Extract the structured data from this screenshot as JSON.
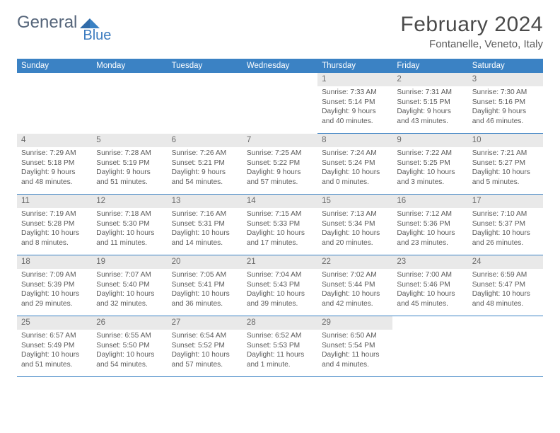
{
  "logo": {
    "text1": "General",
    "text2": "Blue"
  },
  "title": "February 2024",
  "location": "Fontanelle, Veneto, Italy",
  "colors": {
    "header_bg": "#3b82c4",
    "header_text": "#ffffff",
    "daynum_bg": "#e9e9e9",
    "border": "#3b82c4",
    "text": "#5a5a5a",
    "logo_gray": "#55657a",
    "logo_blue": "#3b7bbf"
  },
  "weekdays": [
    "Sunday",
    "Monday",
    "Tuesday",
    "Wednesday",
    "Thursday",
    "Friday",
    "Saturday"
  ],
  "weeks": [
    [
      null,
      null,
      null,
      null,
      {
        "n": "1",
        "sr": "7:33 AM",
        "ss": "5:14 PM",
        "dl": "9 hours and 40 minutes."
      },
      {
        "n": "2",
        "sr": "7:31 AM",
        "ss": "5:15 PM",
        "dl": "9 hours and 43 minutes."
      },
      {
        "n": "3",
        "sr": "7:30 AM",
        "ss": "5:16 PM",
        "dl": "9 hours and 46 minutes."
      }
    ],
    [
      {
        "n": "4",
        "sr": "7:29 AM",
        "ss": "5:18 PM",
        "dl": "9 hours and 48 minutes."
      },
      {
        "n": "5",
        "sr": "7:28 AM",
        "ss": "5:19 PM",
        "dl": "9 hours and 51 minutes."
      },
      {
        "n": "6",
        "sr": "7:26 AM",
        "ss": "5:21 PM",
        "dl": "9 hours and 54 minutes."
      },
      {
        "n": "7",
        "sr": "7:25 AM",
        "ss": "5:22 PM",
        "dl": "9 hours and 57 minutes."
      },
      {
        "n": "8",
        "sr": "7:24 AM",
        "ss": "5:24 PM",
        "dl": "10 hours and 0 minutes."
      },
      {
        "n": "9",
        "sr": "7:22 AM",
        "ss": "5:25 PM",
        "dl": "10 hours and 3 minutes."
      },
      {
        "n": "10",
        "sr": "7:21 AM",
        "ss": "5:27 PM",
        "dl": "10 hours and 5 minutes."
      }
    ],
    [
      {
        "n": "11",
        "sr": "7:19 AM",
        "ss": "5:28 PM",
        "dl": "10 hours and 8 minutes."
      },
      {
        "n": "12",
        "sr": "7:18 AM",
        "ss": "5:30 PM",
        "dl": "10 hours and 11 minutes."
      },
      {
        "n": "13",
        "sr": "7:16 AM",
        "ss": "5:31 PM",
        "dl": "10 hours and 14 minutes."
      },
      {
        "n": "14",
        "sr": "7:15 AM",
        "ss": "5:33 PM",
        "dl": "10 hours and 17 minutes."
      },
      {
        "n": "15",
        "sr": "7:13 AM",
        "ss": "5:34 PM",
        "dl": "10 hours and 20 minutes."
      },
      {
        "n": "16",
        "sr": "7:12 AM",
        "ss": "5:36 PM",
        "dl": "10 hours and 23 minutes."
      },
      {
        "n": "17",
        "sr": "7:10 AM",
        "ss": "5:37 PM",
        "dl": "10 hours and 26 minutes."
      }
    ],
    [
      {
        "n": "18",
        "sr": "7:09 AM",
        "ss": "5:39 PM",
        "dl": "10 hours and 29 minutes."
      },
      {
        "n": "19",
        "sr": "7:07 AM",
        "ss": "5:40 PM",
        "dl": "10 hours and 32 minutes."
      },
      {
        "n": "20",
        "sr": "7:05 AM",
        "ss": "5:41 PM",
        "dl": "10 hours and 36 minutes."
      },
      {
        "n": "21",
        "sr": "7:04 AM",
        "ss": "5:43 PM",
        "dl": "10 hours and 39 minutes."
      },
      {
        "n": "22",
        "sr": "7:02 AM",
        "ss": "5:44 PM",
        "dl": "10 hours and 42 minutes."
      },
      {
        "n": "23",
        "sr": "7:00 AM",
        "ss": "5:46 PM",
        "dl": "10 hours and 45 minutes."
      },
      {
        "n": "24",
        "sr": "6:59 AM",
        "ss": "5:47 PM",
        "dl": "10 hours and 48 minutes."
      }
    ],
    [
      {
        "n": "25",
        "sr": "6:57 AM",
        "ss": "5:49 PM",
        "dl": "10 hours and 51 minutes."
      },
      {
        "n": "26",
        "sr": "6:55 AM",
        "ss": "5:50 PM",
        "dl": "10 hours and 54 minutes."
      },
      {
        "n": "27",
        "sr": "6:54 AM",
        "ss": "5:52 PM",
        "dl": "10 hours and 57 minutes."
      },
      {
        "n": "28",
        "sr": "6:52 AM",
        "ss": "5:53 PM",
        "dl": "11 hours and 1 minute."
      },
      {
        "n": "29",
        "sr": "6:50 AM",
        "ss": "5:54 PM",
        "dl": "11 hours and 4 minutes."
      },
      null,
      null
    ]
  ],
  "labels": {
    "sunrise": "Sunrise: ",
    "sunset": "Sunset: ",
    "daylight": "Daylight: "
  }
}
